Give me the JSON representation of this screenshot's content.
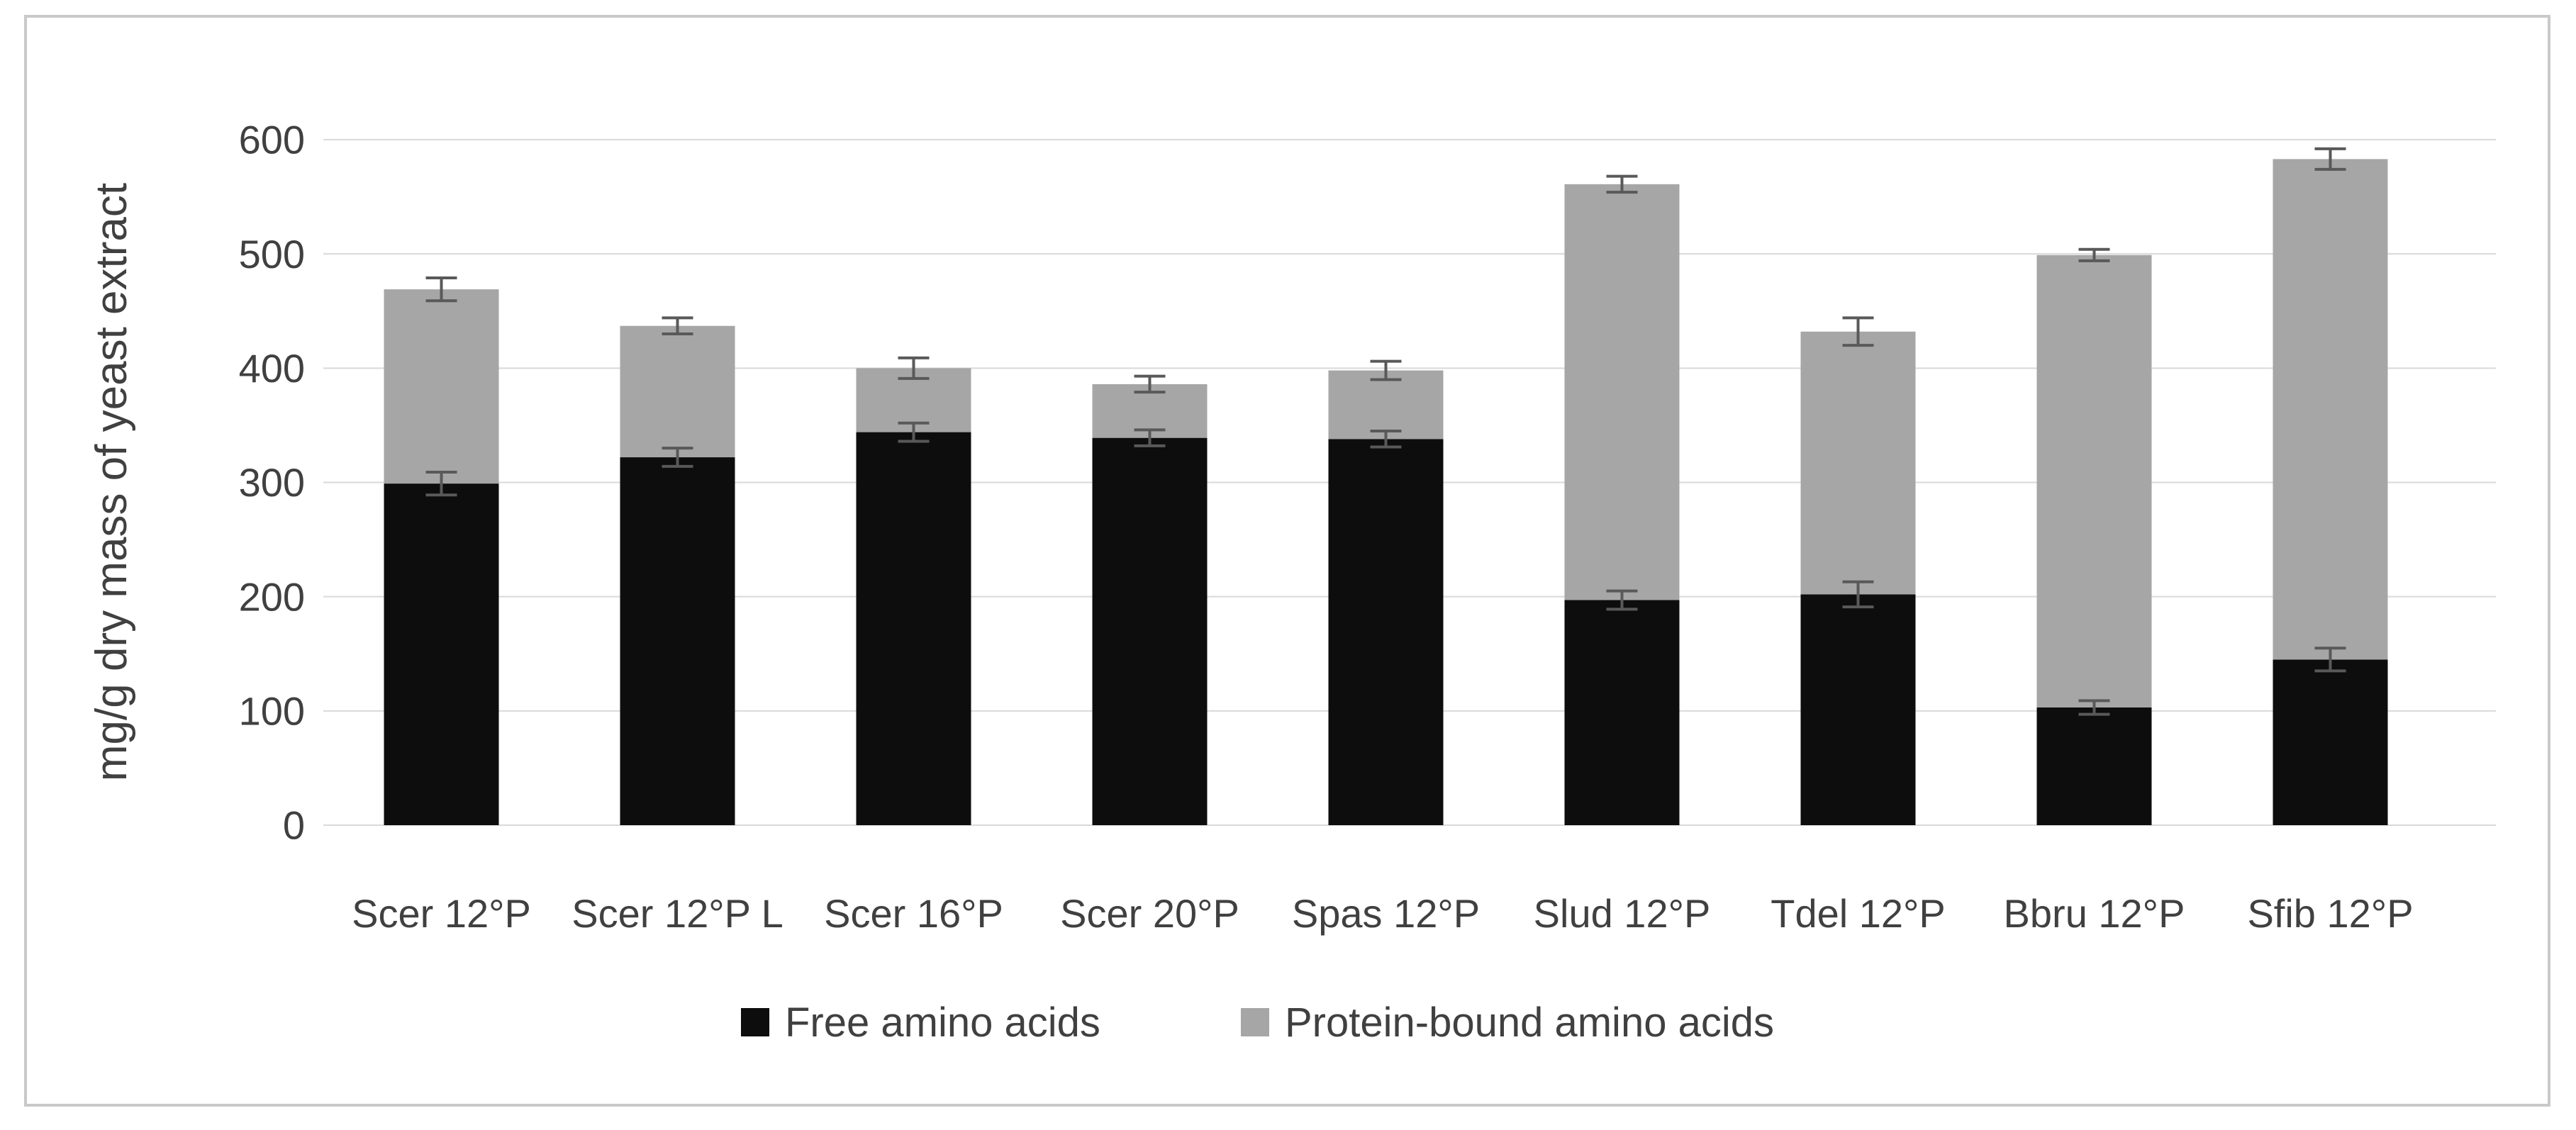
{
  "chart_data": {
    "type": "bar",
    "stacked": true,
    "title": "",
    "xlabel": "",
    "ylabel": "mg/g dry mass of yeast extract",
    "ylim": [
      0,
      600
    ],
    "yticks": [
      0,
      100,
      200,
      300,
      400,
      500,
      600
    ],
    "grid": true,
    "legend_position": "bottom",
    "categories": [
      "Scer 12°P",
      "Scer 12°P L",
      "Scer 16°P",
      "Scer 20°P",
      "Spas 12°P",
      "Slud 12°P",
      "Tdel 12°P",
      "Bbru 12°P",
      "Sfib 12°P"
    ],
    "series": [
      {
        "name": "Free amino acids",
        "color": "#0d0d0d",
        "values": [
          299,
          322,
          344,
          339,
          338,
          197,
          202,
          103,
          145
        ],
        "errors": [
          10,
          8,
          8,
          7,
          7,
          8,
          11,
          6,
          10
        ]
      },
      {
        "name": "Protein-bound amino acids",
        "color": "#a6a6a6",
        "values": [
          170,
          115,
          56,
          47,
          60,
          364,
          230,
          396,
          438
        ],
        "errors": [
          10,
          7,
          9,
          7,
          8,
          7,
          12,
          5,
          9
        ]
      }
    ],
    "stack_totals": [
      469,
      437,
      400,
      386,
      398,
      561,
      432,
      499,
      583
    ],
    "error_bar_color": "#595959"
  },
  "style": {
    "text_color": "#404040",
    "gridline_color": "#d9d9d9",
    "frame_border_color": "#c9c9c9",
    "background": "#ffffff"
  }
}
